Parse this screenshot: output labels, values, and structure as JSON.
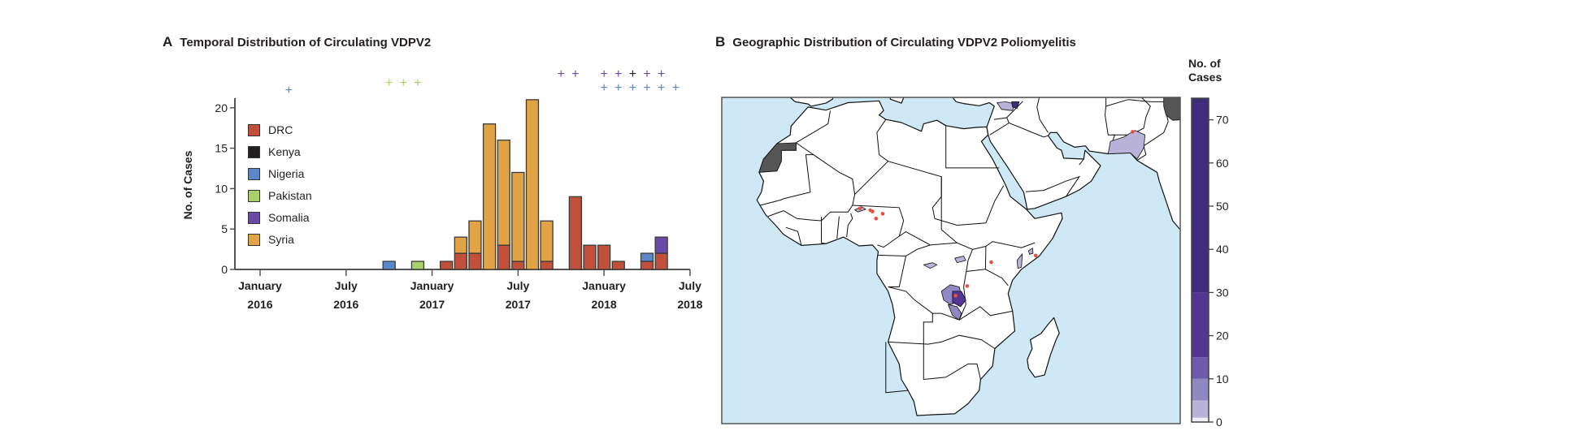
{
  "panel_a": {
    "letter": "A",
    "title": "Temporal Distribution of Circulating VDPV2"
  },
  "panel_b": {
    "letter": "B",
    "title": "Geographic Distribution of Circulating VDPV2 Poliomyelitis"
  },
  "chart_data": [
    {
      "type": "bar",
      "stacked": true,
      "title": "Temporal Distribution of Circulating VDPV2",
      "ylabel": "No. of Cases",
      "xlabel": "",
      "ylim": [
        0,
        21
      ],
      "yticks": [
        0,
        5,
        10,
        15,
        20
      ],
      "x_start": "2016-01",
      "x_end": "2018-07",
      "xticks": [
        {
          "month": "2016-01",
          "line1": "January",
          "line2": "2016"
        },
        {
          "month": "2016-07",
          "line1": "July",
          "line2": "2016"
        },
        {
          "month": "2017-01",
          "line1": "January",
          "line2": "2017"
        },
        {
          "month": "2017-07",
          "line1": "July",
          "line2": "2017"
        },
        {
          "month": "2018-01",
          "line1": "January",
          "line2": "2018"
        },
        {
          "month": "2018-07",
          "line1": "July",
          "line2": "2018"
        }
      ],
      "legend_position": "top-left",
      "series": [
        {
          "name": "DRC",
          "color": "#c0503a"
        },
        {
          "name": "Kenya",
          "color": "#231f20"
        },
        {
          "name": "Nigeria",
          "color": "#5b86c8"
        },
        {
          "name": "Pakistan",
          "color": "#a9cf6a"
        },
        {
          "name": "Somalia",
          "color": "#6a4aa8"
        },
        {
          "name": "Syria",
          "color": "#e0a444"
        }
      ],
      "bars": [
        {
          "month": "2016-10",
          "DRC": 0,
          "Nigeria": 1
        },
        {
          "month": "2016-12",
          "DRC": 0,
          "Pakistan": 1
        },
        {
          "month": "2017-02",
          "DRC": 1
        },
        {
          "month": "2017-03",
          "DRC": 2,
          "Syria": 2
        },
        {
          "month": "2017-04",
          "DRC": 2,
          "Syria": 4
        },
        {
          "month": "2017-05",
          "DRC": 0,
          "Syria": 18
        },
        {
          "month": "2017-06",
          "DRC": 3,
          "Syria": 13
        },
        {
          "month": "2017-07",
          "DRC": 1,
          "Syria": 11
        },
        {
          "month": "2017-08",
          "DRC": 0,
          "Syria": 21
        },
        {
          "month": "2017-09",
          "DRC": 1,
          "Syria": 5
        },
        {
          "month": "2017-11",
          "DRC": 9
        },
        {
          "month": "2017-12",
          "DRC": 3
        },
        {
          "month": "2018-01",
          "DRC": 3
        },
        {
          "month": "2018-02",
          "DRC": 1
        },
        {
          "month": "2018-04",
          "DRC": 1,
          "Nigeria": 1
        },
        {
          "month": "2018-05",
          "DRC": 2,
          "Somalia": 2
        }
      ],
      "plus_markers": [
        {
          "country": "Nigeria",
          "month": "2016-03"
        },
        {
          "country": "Pakistan",
          "month": "2016-10"
        },
        {
          "country": "Pakistan",
          "month": "2016-11"
        },
        {
          "country": "Pakistan",
          "month": "2016-12"
        },
        {
          "country": "Somalia",
          "month": "2017-10"
        },
        {
          "country": "Somalia",
          "month": "2017-11"
        },
        {
          "country": "Somalia",
          "month": "2018-01"
        },
        {
          "country": "Somalia",
          "month": "2018-02"
        },
        {
          "country": "Kenya",
          "month": "2018-03"
        },
        {
          "country": "Somalia",
          "month": "2018-04"
        },
        {
          "country": "Somalia",
          "month": "2018-05"
        },
        {
          "country": "Nigeria",
          "month": "2018-01"
        },
        {
          "country": "Nigeria",
          "month": "2018-02"
        },
        {
          "country": "Nigeria",
          "month": "2018-03"
        },
        {
          "country": "Nigeria",
          "month": "2018-04"
        },
        {
          "country": "Nigeria",
          "month": "2018-05"
        },
        {
          "country": "Nigeria",
          "month": "2018-06"
        }
      ],
      "plus_symbol": "+"
    },
    {
      "type": "heatmap",
      "title": "Geographic Distribution of Circulating VDPV2 Poliomyelitis",
      "colorbar": {
        "title_line1": "No. of",
        "title_line2": "Cases",
        "range": [
          0,
          75
        ],
        "ticks": [
          "0",
          "10",
          "20",
          "30",
          "40",
          "50",
          "60",
          "70"
        ],
        "bands": [
          {
            "from": 0,
            "to": 1,
            "color": "#f1eff8"
          },
          {
            "from": 1,
            "to": 5,
            "color": "#b9b3d9"
          },
          {
            "from": 5,
            "to": 10,
            "color": "#9088c2"
          },
          {
            "from": 10,
            "to": 15,
            "color": "#6e5aa8"
          },
          {
            "from": 15,
            "to": 30,
            "color": "#533593"
          },
          {
            "from": 30,
            "to": 75,
            "color": "#3f2d7c"
          }
        ]
      },
      "colors": {
        "ocean": "#cfe8f5",
        "land": "#ffffff",
        "excluded": "#555555",
        "case_dot": "#e8503a"
      }
    }
  ]
}
